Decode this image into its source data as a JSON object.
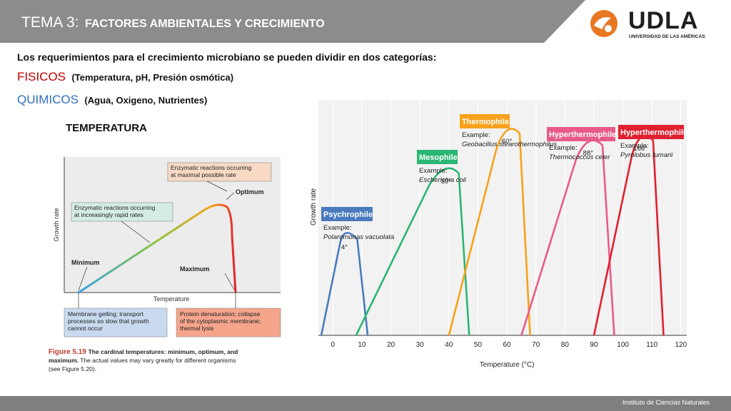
{
  "header": {
    "title_prefix": "TEMA 3:",
    "title_main": "FACTORES AMBIENTALES Y CRECIMIENTO",
    "logo_name": "UDLA",
    "logo_subtitle": "UNIVERSIDAD DE LAS AMÉRICAS",
    "colors": {
      "header_bg": "#8c8c8c",
      "logo_accent": "#e87722"
    }
  },
  "content": {
    "intro": "Los requerimientos para el crecimiento microbiano se pueden dividir en dos categorías",
    "intro_suffix": ":",
    "physical_label": "FISICOS",
    "physical_detail": "(Temperatura, pH, Presión osmótica)",
    "chemical_label": "QUIMICOS",
    "chemical_detail": "(Agua, Oxigeno, Nutrientes)",
    "temperature_heading": "TEMPERATURA"
  },
  "cardinal_figure": {
    "box_optimal": "Enzymatic reactions occurring at maximal possible rate",
    "box_increasing": "Enzymatic reactions occurring at increasingly rapid rates",
    "label_optimum": "Optimum",
    "label_minimum": "Minimum",
    "label_maximum": "Maximum",
    "y_axis": "Growth rate",
    "x_axis": "Temperature",
    "box_minimum": "Membrane gelling; transport processes so slow that growth cannot occur",
    "box_maximum": "Protein denaturation; collapse of the cytoplasmic membrane; thermal lysis",
    "caption_label": "Figure 5.19",
    "caption_text": "The cardinal temperatures: minimum, optimum, and maximum. The actual values may vary greatly for different organisms (see Figure 5.20)."
  },
  "chart_data": {
    "type": "line",
    "xlabel": "Temperature (°C)",
    "ylabel": "Growth rate",
    "xlim": [
      -5,
      122
    ],
    "x_ticks": [
      0,
      10,
      20,
      30,
      40,
      50,
      60,
      70,
      80,
      90,
      100,
      110,
      120
    ],
    "grid": true,
    "series": [
      {
        "name": "Psychrophile",
        "example_label": "Example:",
        "example": "Polaromonas vacuolata",
        "optimum_label": "4°",
        "color": "#4a7bbf",
        "min": -4,
        "opt": 4,
        "max": 12,
        "peak": 0.45
      },
      {
        "name": "Mesophile",
        "example_label": "Example:",
        "example": "Escherichia coli",
        "optimum_label": "39°",
        "color": "#2bb673",
        "min": 8,
        "opt": 39,
        "max": 47,
        "peak": 0.73
      },
      {
        "name": "Thermophile",
        "example_label": "Example:",
        "example": "Geobacillus stearothermophilus",
        "optimum_label": "60°",
        "color": "#f7a21b",
        "min": 40,
        "opt": 60,
        "max": 68,
        "peak": 0.9
      },
      {
        "name": "Hyperthermophile",
        "example_label": "Example:",
        "example": "Thermococcus celer",
        "optimum_label": "88°",
        "color": "#e85a8a",
        "min": 65,
        "opt": 88,
        "max": 97,
        "peak": 0.85
      },
      {
        "name": "Hyperthermophile",
        "example_label": "Example:",
        "example": "Pyrolobus fumarii",
        "optimum_label": "106°",
        "color": "#e0202e",
        "min": 90,
        "opt": 106,
        "max": 114,
        "peak": 0.87
      }
    ]
  },
  "footer": {
    "text": "Instituto de Ciencias Naturales"
  }
}
